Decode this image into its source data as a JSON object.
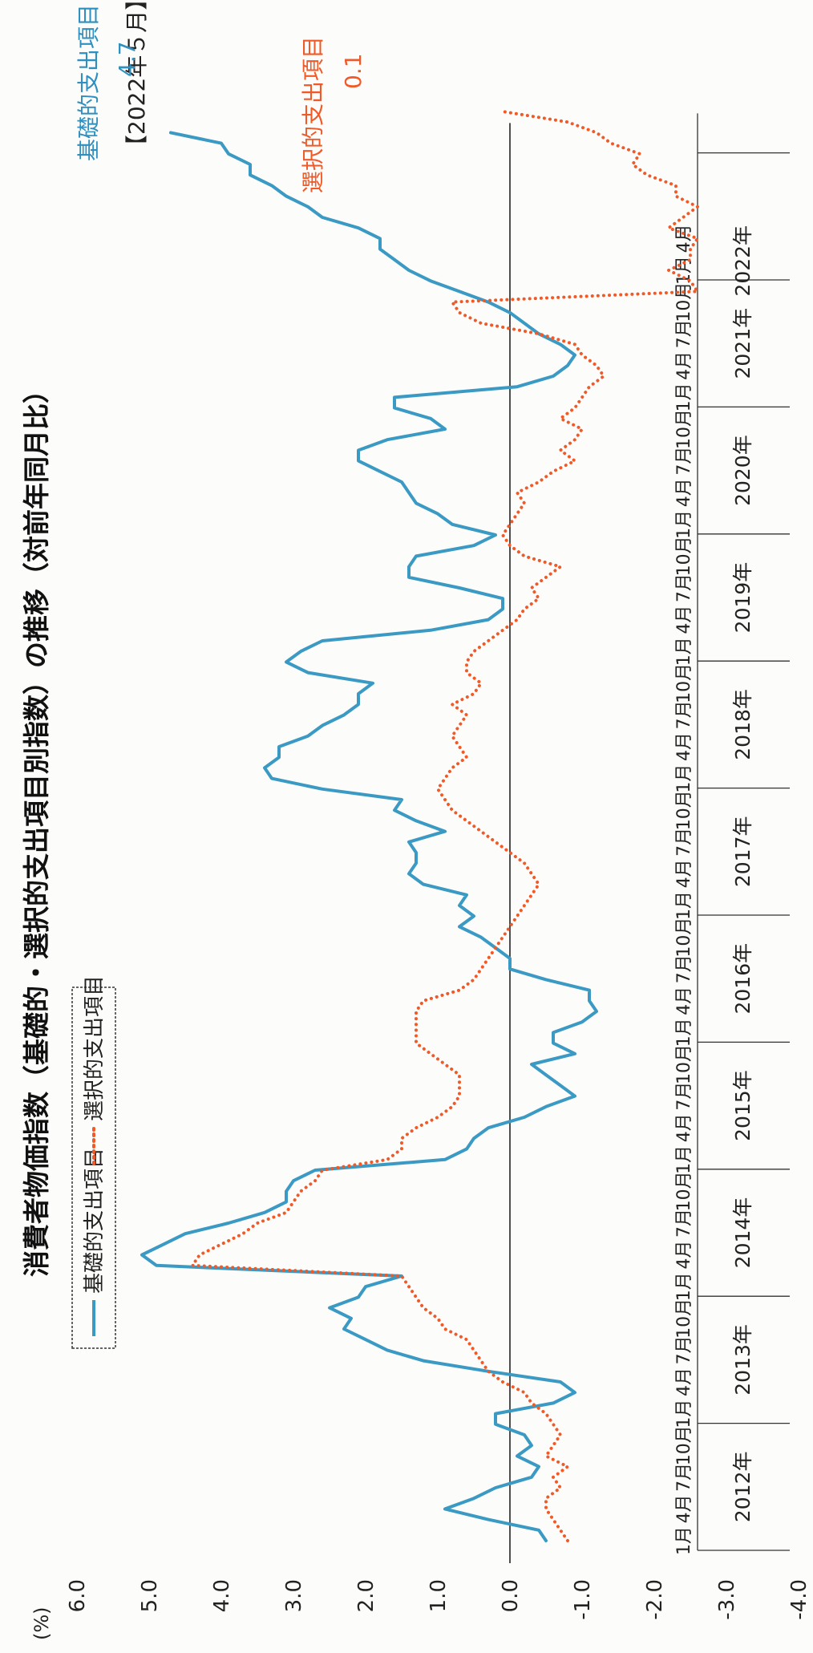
{
  "chart_data": {
    "type": "line",
    "title": "消費者物価指数（基礎的・選択的支出項目別指数）の推移（対前年同月比）",
    "ylabel": "(%)",
    "ylim": [
      -4.0,
      6.0
    ],
    "yticks": [
      "6.0",
      "5.0",
      "4.0",
      "3.0",
      "2.0",
      "1.0",
      "0.0",
      "-1.0",
      "-2.0",
      "-3.0",
      "-4.0"
    ],
    "grid": false,
    "legend_position": "top-left",
    "x_start": "2012-01",
    "month_labels": [
      "1月",
      "4月",
      "7月",
      "10月"
    ],
    "year_labels": [
      "2012年",
      "2013年",
      "2014年",
      "2015年",
      "2016年",
      "2017年",
      "2018年",
      "2019年",
      "2020年",
      "2021年",
      "2022年"
    ],
    "annotation": {
      "header": "【2022年５月】",
      "items": [
        {
          "label": "基礎的支出項目",
          "value": "4.7"
        },
        {
          "label": "選択的支出項目",
          "value": "0.1"
        }
      ]
    },
    "series": [
      {
        "name": "基礎的支出項目",
        "color": "#3b9ac4",
        "values": [
          -0.5,
          -0.4,
          0.3,
          0.9,
          0.5,
          0.2,
          -0.3,
          -0.4,
          -0.1,
          -0.3,
          -0.2,
          0.2,
          0.2,
          -0.6,
          -0.9,
          -0.7,
          0.3,
          1.2,
          1.7,
          2.0,
          2.3,
          2.2,
          2.5,
          2.1,
          2.0,
          1.5,
          4.9,
          5.1,
          4.8,
          4.5,
          3.9,
          3.4,
          3.1,
          3.1,
          3.0,
          2.7,
          0.9,
          0.6,
          0.5,
          0.3,
          -0.2,
          -0.5,
          -0.9,
          -0.7,
          -0.5,
          -0.3,
          -0.9,
          -0.6,
          -0.6,
          -1.0,
          -1.2,
          -1.1,
          -1.1,
          -0.5,
          0.0,
          0.0,
          0.2,
          0.4,
          0.7,
          0.5,
          0.7,
          0.6,
          1.2,
          1.4,
          1.3,
          1.3,
          1.4,
          0.9,
          1.3,
          1.6,
          1.5,
          2.6,
          3.3,
          3.4,
          3.2,
          3.2,
          2.8,
          2.6,
          2.3,
          2.1,
          2.1,
          1.9,
          2.8,
          3.1,
          2.9,
          2.6,
          1.1,
          0.3,
          0.1,
          0.1,
          0.7,
          1.4,
          1.4,
          1.3,
          0.5,
          0.2,
          0.8,
          1.0,
          1.3,
          1.4,
          1.5,
          1.8,
          2.1,
          2.1,
          1.7,
          0.9,
          1.1,
          1.6,
          1.6,
          -0.1,
          -0.6,
          -0.8,
          -0.9,
          -0.7,
          -0.4,
          -0.2,
          0.0,
          0.3,
          0.7,
          1.1,
          1.4,
          1.6,
          1.8,
          1.8,
          2.1,
          2.6,
          2.8,
          3.1,
          3.3,
          3.6,
          3.6,
          3.9,
          4.0,
          4.7
        ]
      },
      {
        "name": "選択的支出項目",
        "color": "#f05a28",
        "values": [
          -0.8,
          -0.7,
          -0.6,
          -0.5,
          -0.5,
          -0.7,
          -0.6,
          -0.8,
          -0.5,
          -0.6,
          -0.7,
          -0.6,
          -0.5,
          -0.3,
          -0.2,
          0.1,
          0.3,
          0.4,
          0.5,
          0.6,
          0.9,
          1.0,
          1.2,
          1.3,
          1.4,
          1.5,
          4.4,
          4.3,
          4.0,
          3.7,
          3.5,
          3.1,
          3.0,
          2.9,
          2.7,
          2.6,
          1.7,
          1.5,
          1.5,
          1.3,
          1.0,
          0.8,
          0.7,
          0.7,
          0.7,
          0.9,
          1.1,
          1.3,
          1.3,
          1.3,
          1.3,
          1.2,
          0.7,
          0.5,
          0.4,
          0.3,
          0.2,
          0.1,
          0.0,
          -0.1,
          -0.2,
          -0.3,
          -0.4,
          -0.3,
          -0.2,
          0.0,
          0.2,
          0.4,
          0.6,
          0.8,
          0.9,
          1.0,
          0.9,
          0.8,
          0.6,
          0.7,
          0.8,
          0.7,
          0.6,
          0.8,
          0.5,
          0.4,
          0.6,
          0.6,
          0.5,
          0.3,
          0.1,
          -0.1,
          -0.2,
          -0.4,
          -0.3,
          -0.5,
          -0.7,
          -0.2,
          0.0,
          0.1,
          0.0,
          -0.1,
          -0.2,
          -0.1,
          -0.4,
          -0.6,
          -0.9,
          -0.7,
          -0.9,
          -1.0,
          -0.7,
          -0.9,
          -1.0,
          -1.1,
          -1.3,
          -1.2,
          -1.0,
          -0.9,
          -0.4,
          0.4,
          0.7,
          0.8,
          -2.6,
          -2.5,
          -2.2,
          -2.5,
          -2.5,
          -2.6,
          -2.2,
          -2.4,
          -2.6,
          -2.3,
          -2.3,
          -1.9,
          -1.7,
          -1.8,
          -1.4,
          -1.2,
          -0.8,
          0.1
        ]
      }
    ]
  }
}
